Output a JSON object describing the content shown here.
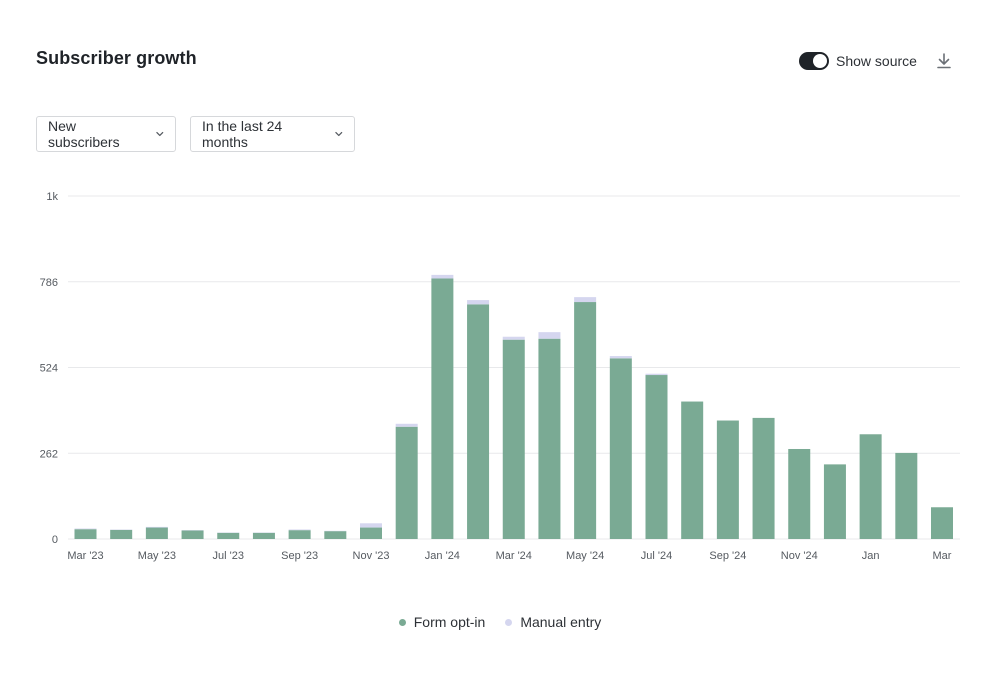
{
  "header": {
    "title": "Subscriber growth",
    "show_source_label": "Show source",
    "show_source_on": true
  },
  "filters": {
    "metric": "New subscribers",
    "range": "In the last 24 months"
  },
  "icons": {
    "download": "download-icon",
    "chevron": "chevron-down-icon"
  },
  "colors": {
    "form_opt_in": "#7aaa94",
    "manual_entry": "#d5d6ef",
    "gridline": "#e8e9eb",
    "text_muted": "#555a60"
  },
  "chart_data": {
    "type": "bar",
    "stacked": true,
    "ylim": [
      0,
      1048
    ],
    "yticks": [
      0,
      262,
      524,
      786,
      "1k"
    ],
    "categories": [
      "Mar '23",
      "Apr '23",
      "May '23",
      "Jun '23",
      "Jul '23",
      "Aug '23",
      "Sep '23",
      "Oct '23",
      "Nov '23",
      "Dec '23",
      "Jan '24",
      "Feb '24",
      "Mar '24",
      "Apr '24",
      "May '24",
      "Jun '24",
      "Jul '24",
      "Aug '24",
      "Sep '24",
      "Oct '24",
      "Nov '24",
      "Dec '24",
      "Jan",
      "Feb",
      "Mar"
    ],
    "xtick_labels": [
      "Mar '23",
      "",
      "May '23",
      "",
      "Jul '23",
      "",
      "Sep '23",
      "",
      "Nov '23",
      "",
      "Jan '24",
      "",
      "Mar '24",
      "",
      "May '24",
      "",
      "Jul '24",
      "",
      "Sep '24",
      "",
      "Nov '24",
      "",
      "Jan",
      "",
      "Mar"
    ],
    "series": [
      {
        "name": "Form opt-in",
        "values": [
          30,
          28,
          35,
          26,
          19,
          19,
          27,
          24,
          35,
          343,
          796,
          717,
          609,
          612,
          724,
          552,
          501,
          420,
          362,
          370,
          275,
          228,
          320,
          263,
          97
        ]
      },
      {
        "name": "Manual entry",
        "values": [
          2,
          1,
          2,
          1,
          1,
          1,
          2,
          1,
          13,
          9,
          11,
          13,
          9,
          20,
          15,
          7,
          4,
          0,
          0,
          0,
          0,
          0,
          0,
          0,
          0
        ]
      }
    ],
    "legend_position": "bottom-center",
    "grid": true
  }
}
